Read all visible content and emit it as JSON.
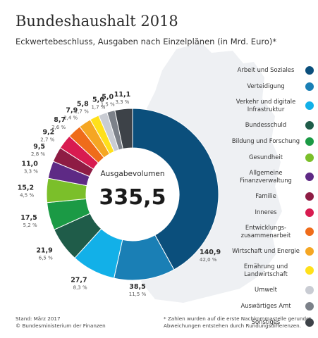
{
  "header": {
    "title": "Bundeshaushalt 2018",
    "subtitle": "Eckwertebeschluss, Ausgaben nach Einzelplänen (in Mrd. Euro)*"
  },
  "center": {
    "label": "Ausgabevolumen",
    "value": "335,5"
  },
  "chart_data": {
    "type": "pie",
    "donut": true,
    "unit": "Mrd. Euro",
    "total": 335.5,
    "slices": [
      {
        "name": "Arbeit und Soziales",
        "value": 140.9,
        "label": "140,9",
        "pct": "42,0 %",
        "color": "#0b4f7c"
      },
      {
        "name": "Verteidigung",
        "value": 38.5,
        "label": "38,5",
        "pct": "11,5 %",
        "color": "#1a7fb5"
      },
      {
        "name": "Verkehr und digitale Infrastruktur",
        "value": 27.7,
        "label": "27,7",
        "pct": "8,3 %",
        "color": "#12b0e8"
      },
      {
        "name": "Bundesschuld",
        "value": 21.9,
        "label": "21,9",
        "pct": "6,5 %",
        "color": "#1f5c49"
      },
      {
        "name": "Bildung und Forschung",
        "value": 17.5,
        "label": "17,5",
        "pct": "5,2 %",
        "color": "#1b9a45"
      },
      {
        "name": "Gesundheit",
        "value": 15.2,
        "label": "15,2",
        "pct": "4,5 %",
        "color": "#7bbf2a"
      },
      {
        "name": "Allgemeine Finanzverwaltung",
        "value": 11.0,
        "label": "11,0",
        "pct": "3,3 %",
        "color": "#5e2a85"
      },
      {
        "name": "Familie",
        "value": 9.5,
        "label": "9,5",
        "pct": "2,8 %",
        "color": "#8e1c44"
      },
      {
        "name": "Inneres",
        "value": 9.2,
        "label": "9,2",
        "pct": "2,7 %",
        "color": "#d81b50"
      },
      {
        "name": "Entwicklungs-zusammenarbeit",
        "value": 8.7,
        "label": "8,7",
        "pct": "2,6 %",
        "color": "#ef6c1a"
      },
      {
        "name": "Wirtschaft und Energie",
        "value": 7.9,
        "label": "7,9",
        "pct": "2,4 %",
        "color": "#f5a623"
      },
      {
        "name": "Ernährung und Landwirtschaft",
        "value": 5.8,
        "label": "5,8",
        "pct": "1,7 %",
        "color": "#ffe01a"
      },
      {
        "name": "Umwelt",
        "value": 5.6,
        "label": "5,6",
        "pct": "1,7 %",
        "color": "#c9ccd3"
      },
      {
        "name": "Auswärtiges Amt",
        "value": 5.0,
        "label": "5,0",
        "pct": "1,5 %",
        "color": "#7c8189"
      },
      {
        "name": "Sonstiges",
        "value": 11.1,
        "label": "11,1",
        "pct": "3,3 %",
        "color": "#3d4248"
      }
    ]
  },
  "legend": [
    {
      "lines": [
        "Arbeit und Soziales"
      ],
      "color": "#0b4f7c"
    },
    {
      "lines": [
        "Verteidigung"
      ],
      "color": "#1a7fb5"
    },
    {
      "lines": [
        "Verkehr und digitale",
        "Infrastruktur"
      ],
      "color": "#12b0e8"
    },
    {
      "lines": [
        "Bundesschuld"
      ],
      "color": "#1f5c49"
    },
    {
      "lines": [
        "Bildung und Forschung"
      ],
      "color": "#1b9a45"
    },
    {
      "lines": [
        "Gesundheit"
      ],
      "color": "#7bbf2a"
    },
    {
      "lines": [
        "Allgemeine",
        "Finanzverwaltung"
      ],
      "color": "#5e2a85"
    },
    {
      "lines": [
        "Familie"
      ],
      "color": "#8e1c44"
    },
    {
      "lines": [
        "Inneres"
      ],
      "color": "#d81b50"
    },
    {
      "lines": [
        "Entwicklungs-",
        "zusammenarbeit"
      ],
      "color": "#ef6c1a"
    },
    {
      "lines": [
        "Wirtschaft und Energie"
      ],
      "color": "#f5a623"
    },
    {
      "lines": [
        "Ernährung und",
        "Landwirtschaft"
      ],
      "color": "#ffe01a"
    },
    {
      "lines": [
        "Umwelt"
      ],
      "color": "#c9ccd3"
    },
    {
      "lines": [
        "Auswärtiges Amt"
      ],
      "color": "#7c8189"
    },
    {
      "lines": [
        "Sonstiges"
      ],
      "color": "#3d4248"
    }
  ],
  "footer": {
    "source_line1": "Stand: März 2017",
    "source_line2": "© Bundesministerium der Finanzen",
    "note_line1": "* Zahlen wurden auf die erste Nachkommastelle gerundet.",
    "note_line2": "Abweichungen entstehen durch Rundungsdifferenzen."
  }
}
